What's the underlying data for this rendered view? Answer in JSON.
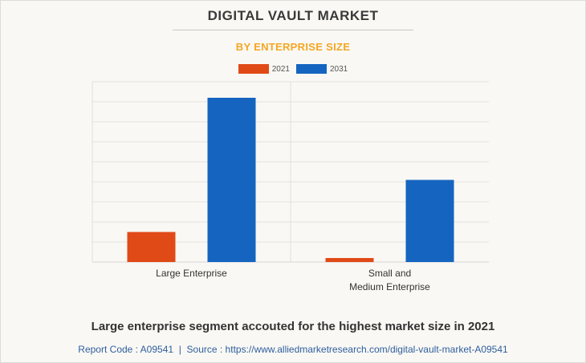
{
  "header": {
    "title": "DIGITAL VAULT MARKET",
    "subtitle": "BY ENTERPRISE SIZE"
  },
  "footer": {
    "headline": "Large enterprise segment accouted for the highest market size in 2021",
    "report_code": "Report Code : A09541",
    "separator": "|",
    "source": "Source : https://www.alliedmarketresearch.com/digital-vault-market-A09541"
  },
  "chart_data": {
    "type": "bar",
    "categories": [
      "Large Enterprise",
      "Small and\nMedium Enterprise"
    ],
    "series": [
      {
        "name": "2021",
        "color": "#e04a17",
        "values": [
          1.5,
          0.2
        ]
      },
      {
        "name": "2031",
        "color": "#1565c0",
        "values": [
          8.2,
          4.1
        ]
      }
    ],
    "ylim": [
      0,
      9
    ],
    "gridlines": 9,
    "grid": true,
    "legend": "top-center",
    "xlabel": "",
    "ylabel": ""
  }
}
